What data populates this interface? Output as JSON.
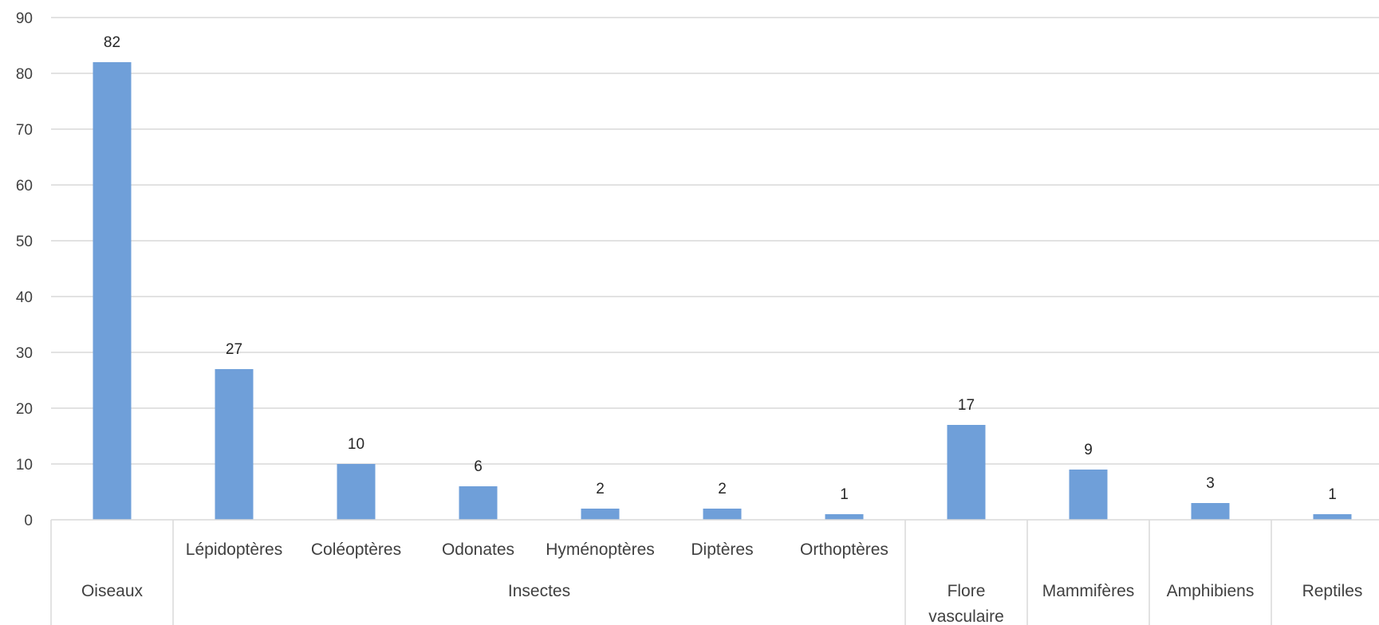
{
  "chart_data": {
    "type": "bar",
    "title": "",
    "xlabel": "",
    "ylabel": "",
    "ylim": [
      0,
      90
    ],
    "y_ticks": [
      0,
      10,
      20,
      30,
      40,
      50,
      60,
      70,
      80,
      90
    ],
    "grid": true,
    "legend": "none",
    "bar_color": "#6f9fd9",
    "categories": [
      {
        "label": "",
        "group": "Oiseaux",
        "value": 82
      },
      {
        "label": "Lépidoptères",
        "group": "Insectes",
        "value": 27
      },
      {
        "label": "Coléoptères",
        "group": "Insectes",
        "value": 10
      },
      {
        "label": "Odonates",
        "group": "Insectes",
        "value": 6
      },
      {
        "label": "Hyménoptères",
        "group": "Insectes",
        "value": 2
      },
      {
        "label": "Diptères",
        "group": "Insectes",
        "value": 2
      },
      {
        "label": "Orthoptères",
        "group": "Insectes",
        "value": 1
      },
      {
        "label": "",
        "group": "Flore vasculaire",
        "value": 17
      },
      {
        "label": "",
        "group": "Mammifères",
        "value": 9
      },
      {
        "label": "",
        "group": "Amphibiens",
        "value": 3
      },
      {
        "label": "",
        "group": "Reptiles",
        "value": 1
      }
    ],
    "groups": [
      {
        "name": "Oiseaux",
        "lines": [
          "Oiseaux"
        ],
        "count": 1
      },
      {
        "name": "Insectes",
        "lines": [
          "Insectes"
        ],
        "count": 6
      },
      {
        "name": "Flore vasculaire",
        "lines": [
          "Flore",
          "vasculaire"
        ],
        "count": 1
      },
      {
        "name": "Mammifères",
        "lines": [
          "Mammifères"
        ],
        "count": 1
      },
      {
        "name": "Amphibiens",
        "lines": [
          "Amphibiens"
        ],
        "count": 1
      },
      {
        "name": "Reptiles",
        "lines": [
          "Reptiles"
        ],
        "count": 1
      }
    ]
  }
}
